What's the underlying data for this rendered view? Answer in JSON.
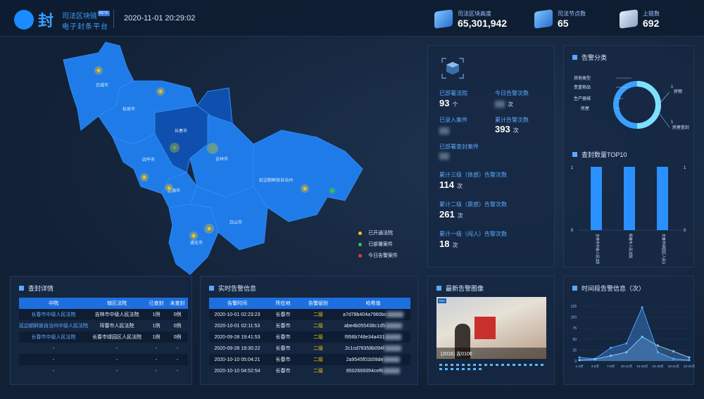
{
  "header": {
    "logo_char": "封",
    "brand_line1": "司法区块链",
    "brand_badge": "BETA",
    "brand_line2": "电子封条平台",
    "datetime": "2020-11-01 20:29:02",
    "stats": [
      {
        "label": "司法区块高度",
        "value": "65,301,942",
        "icon": "cube-icon"
      },
      {
        "label": "司法节点数",
        "value": "65",
        "icon": "layers-icon"
      },
      {
        "label": "上链数",
        "value": "692",
        "icon": "server-icon"
      }
    ]
  },
  "map": {
    "cities": [
      "白城市",
      "松原市",
      "长春市",
      "吉林市",
      "四平市",
      "辽源市",
      "通化市",
      "白山市",
      "延边朝鲜族自治州"
    ],
    "legend": [
      {
        "label": "已开通法院",
        "color": "#f0c419"
      },
      {
        "label": "已部署案件",
        "color": "#3fbf4f"
      },
      {
        "label": "今日告警案件",
        "color": "#e53935"
      }
    ]
  },
  "stats_panel": {
    "deployed_courts_label": "已部署法院",
    "deployed_courts_value": "93",
    "deployed_courts_unit": "个",
    "today_alerts_label": "今日告警次数",
    "today_alerts_unit": "次",
    "recorded_cases_label": "已录入案件",
    "total_alerts_label": "累计告警次数",
    "total_alerts_value": "393",
    "total_alerts_unit": "次",
    "deployed_seal_cases_label": "已部署查封案件",
    "level3_label": "累计三级（体感）告警次数",
    "level3_value": "114",
    "level3_unit": "次",
    "level2_label": "累计二级（震感）告警次数",
    "level2_value": "261",
    "level2_unit": "次",
    "level1_label": "累计一级（闯入）告警次数",
    "level1_value": "18",
    "level1_unit": "次"
  },
  "alarm_category": {
    "title": "告警分类",
    "labels_left": [
      "其他类型",
      "贵重物品",
      "生产器械",
      "房屋"
    ],
    "label_right_top": "房物",
    "label_right_top_value": "1",
    "label_right_bottom": "房屋查封",
    "label_right_bottom_value": "1"
  },
  "seal_top10": {
    "title": "查封数量TOP10",
    "y_max_label": "1",
    "y_min_label": "0",
    "right_max_label": "1",
    "right_min_label": "0",
    "bars": [
      {
        "label": "吉林市中级人民法院",
        "value": 1
      },
      {
        "label": "辉春市人民法院",
        "value": 1
      },
      {
        "label": "长春市绿园区人民法院",
        "value": 1
      }
    ]
  },
  "seal_detail": {
    "title": "查封详情",
    "columns": [
      "中院",
      "辖区法院",
      "已查封",
      "未查封"
    ],
    "rows": [
      [
        "长春市中级人民法院",
        "吉林市中级人民法院",
        "1例",
        "0例"
      ],
      [
        "延边朝鲜族自治州中级人民法院",
        "珲春市人民法院",
        "1例",
        "0例"
      ],
      [
        "长春市中级人民法院",
        "长春市绿园区人民法院",
        "1例",
        "0例"
      ],
      [
        "-",
        "-",
        "-",
        "-"
      ],
      [
        "-",
        "-",
        "-",
        "-"
      ],
      [
        "-",
        "-",
        "-",
        "-"
      ]
    ]
  },
  "realtime_alerts": {
    "title": "实时告警信息",
    "columns": [
      "告警时间",
      "所在地",
      "告警级别",
      "哈希值"
    ],
    "rows": [
      [
        "2020-10-01 02:23:23",
        "长春市",
        "二级",
        "a7d78b404a7960bc"
      ],
      [
        "2020-10-01 02:11:53",
        "长春市",
        "二级",
        "abe4b055438c1d5"
      ],
      [
        "2020-09-28 19:41:53",
        "长春市",
        "二级",
        "f956b748e34a431"
      ],
      [
        "2020-09-28 19:30:22",
        "长春市",
        "二级",
        "2c1cd78358b094f"
      ],
      [
        "2020-10-10 05:04:21",
        "长春市",
        "二级",
        "2a9545f01b59de"
      ],
      [
        "2020-10-10 04:52:54",
        "长春市",
        "二级",
        "8502669394cef6"
      ]
    ]
  },
  "latest_image": {
    "title": "最新告警图像",
    "caption": "(2016) 吉0106",
    "tag": "DEV"
  },
  "time_period": {
    "title": "时间段告警信息（次）",
    "chart_data": {
      "type": "area",
      "categories": [
        "1-3点",
        "4-6点",
        "7-9点",
        "10-12点",
        "13-15点",
        "16-18点",
        "19-21点",
        "22-24点"
      ],
      "yticks": [
        0,
        25,
        50,
        75,
        100,
        125
      ],
      "ylim": [
        0,
        125
      ],
      "series": [
        {
          "values": [
            8,
            5,
            30,
            40,
            122,
            20,
            5,
            2
          ],
          "color": "#4a9eff"
        },
        {
          "values": [
            2,
            4,
            12,
            20,
            55,
            35,
            22,
            8
          ],
          "color": "#7cc4ff"
        }
      ]
    }
  }
}
